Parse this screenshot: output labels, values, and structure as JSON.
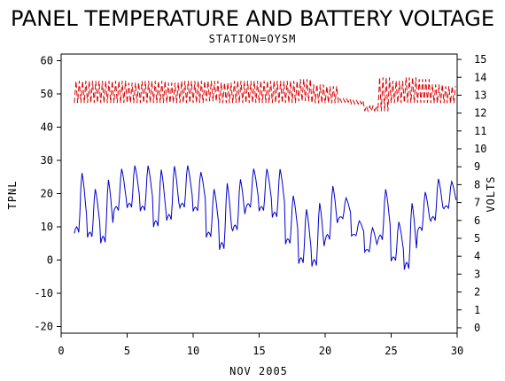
{
  "chart_data": {
    "type": "line",
    "title": "PANEL TEMPERATURE AND BATTERY VOLTAGE",
    "subtitle": "STATION=OYSM",
    "xlabel": "NOV 2005",
    "ylabel_left": "TPNL",
    "ylabel_right": "VOLTS",
    "xlim": [
      0,
      30
    ],
    "ylim_left": [
      -22,
      62
    ],
    "ylim_right": [
      -0.3,
      15.3
    ],
    "x_ticks": [
      0,
      5,
      10,
      15,
      20,
      25,
      30
    ],
    "y_ticks_left": [
      -20,
      -10,
      0,
      10,
      20,
      30,
      40,
      50,
      60
    ],
    "y_ticks_right": [
      0,
      1,
      2,
      3,
      4,
      5,
      6,
      7,
      8,
      9,
      10,
      11,
      12,
      13,
      14,
      15
    ],
    "colors": {
      "temperature": "#0000cc",
      "voltage": "#dd0000"
    },
    "grid": false,
    "series": [
      {
        "axis": "left",
        "style": "solid",
        "days": [
          {
            "min": 7,
            "max": 27
          },
          {
            "min": 6,
            "max": 22
          },
          {
            "min": 4,
            "max": 25
          },
          {
            "min": 14,
            "max": 28
          },
          {
            "min": 15,
            "max": 29
          },
          {
            "min": 14,
            "max": 29
          },
          {
            "min": 9,
            "max": 28
          },
          {
            "min": 11,
            "max": 29
          },
          {
            "min": 15,
            "max": 29
          },
          {
            "min": 14,
            "max": 27
          },
          {
            "min": 6,
            "max": 22
          },
          {
            "min": 2,
            "max": 24
          },
          {
            "min": 8,
            "max": 25
          },
          {
            "min": 15,
            "max": 28
          },
          {
            "min": 14,
            "max": 28
          },
          {
            "min": 12,
            "max": 28
          },
          {
            "min": 4,
            "max": 20
          },
          {
            "min": -2,
            "max": 16
          },
          {
            "min": -3,
            "max": 18
          },
          {
            "min": 5,
            "max": 23
          },
          {
            "min": 12,
            "max": 19
          },
          {
            "min": 7,
            "max": 12
          },
          {
            "min": 2,
            "max": 10
          },
          {
            "min": 5,
            "max": 22
          },
          {
            "min": -1,
            "max": 12
          },
          {
            "min": -4,
            "max": 18
          },
          {
            "min": 8,
            "max": 21
          },
          {
            "min": 11,
            "max": 25
          },
          {
            "min": 15,
            "max": 24
          }
        ]
      },
      {
        "axis": "right",
        "style": "dashed",
        "days": [
          {
            "min": 12.5,
            "max": 13.8
          },
          {
            "min": 12.5,
            "max": 13.8
          },
          {
            "min": 12.5,
            "max": 13.8
          },
          {
            "min": 12.5,
            "max": 13.8
          },
          {
            "min": 12.5,
            "max": 13.7
          },
          {
            "min": 12.5,
            "max": 13.8
          },
          {
            "min": 12.5,
            "max": 13.8
          },
          {
            "min": 12.5,
            "max": 13.7
          },
          {
            "min": 12.5,
            "max": 13.8
          },
          {
            "min": 12.5,
            "max": 13.8
          },
          {
            "min": 12.6,
            "max": 13.8
          },
          {
            "min": 12.5,
            "max": 13.7
          },
          {
            "min": 12.5,
            "max": 13.8
          },
          {
            "min": 12.5,
            "max": 13.8
          },
          {
            "min": 12.5,
            "max": 13.8
          },
          {
            "min": 12.5,
            "max": 13.8
          },
          {
            "min": 12.5,
            "max": 13.8
          },
          {
            "min": 12.6,
            "max": 13.9
          },
          {
            "min": 12.5,
            "max": 13.6
          },
          {
            "min": 12.5,
            "max": 13.5
          },
          {
            "min": 12.6,
            "max": 12.8
          },
          {
            "min": 12.5,
            "max": 12.7
          },
          {
            "min": 12.1,
            "max": 12.4
          },
          {
            "min": 12.0,
            "max": 14.0
          },
          {
            "min": 12.5,
            "max": 13.8
          },
          {
            "min": 12.5,
            "max": 14.0
          },
          {
            "min": 12.5,
            "max": 13.9
          },
          {
            "min": 12.5,
            "max": 13.6
          },
          {
            "min": 12.5,
            "max": 13.5
          }
        ]
      }
    ]
  }
}
